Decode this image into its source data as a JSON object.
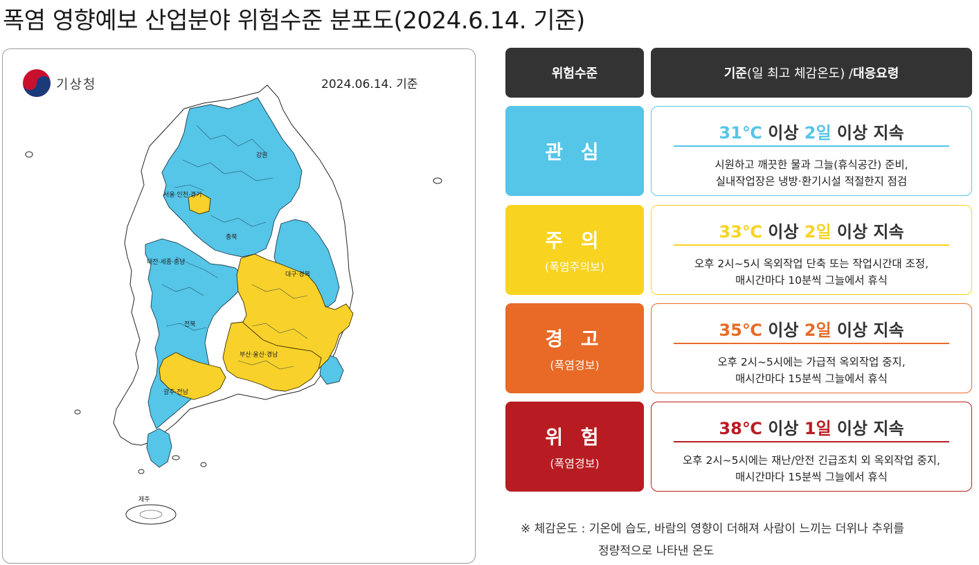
{
  "title": "폭염 영향예보 산업분야 위험수준 분포도(2024.6.14. 기준)",
  "map": {
    "agency": "기상청",
    "date_label": "2024.06.14. 기준",
    "regions": {
      "seoul": "서울·인천·경기",
      "gangwon": "강원",
      "chungbuk": "충북",
      "daejeon": "대전·세종·충남",
      "daegu": "대구·경북",
      "jeonbuk": "전북",
      "busan": "부산·울산·경남",
      "gwangju": "광주·전남",
      "jeju": "제주"
    },
    "colors": {
      "interest": "#55c5e8",
      "caution": "#f8d12a",
      "unaffected": "#ffffff"
    }
  },
  "table": {
    "header_level": "위험수준",
    "header_criteria_a": "기준",
    "header_criteria_b": "(일 최고 체감온도) / ",
    "header_criteria_c": "대응요령",
    "rows": [
      {
        "name": "관 심",
        "sub": "",
        "temp": "31℃",
        "mid1": " 이상 ",
        "days": "2일",
        "mid2": " 이상 지속",
        "line1": "시원하고 깨끗한 물과 그늘(휴식공간) 준비,",
        "line2": "실내작업장은 냉방·환기시설 적절한지 점검",
        "color": "#55c5e8"
      },
      {
        "name": "주 의",
        "sub": "(폭염주의보)",
        "temp": "33℃",
        "mid1": " 이상 ",
        "days": "2일",
        "mid2": " 이상 지속",
        "line1": "오후 2시~5시 옥외작업 단축 또는 작업시간대 조정,",
        "line2": "매시간마다 10분씩 그늘에서 휴식",
        "color": "#f8d31f"
      },
      {
        "name": "경 고",
        "sub": "(폭염경보)",
        "temp": "35℃",
        "mid1": " 이상 ",
        "days": "2일",
        "mid2": " 이상 지속",
        "line1": "오후 2시~5시에는 가급적 옥외작업 중지,",
        "line2": "매시간마다 15분씩 그늘에서 휴식",
        "color": "#e86a26"
      },
      {
        "name": "위 험",
        "sub": "(폭염경보)",
        "temp": "38℃",
        "mid1": " 이상 ",
        "days": "1일",
        "mid2": " 이상 지속",
        "line1": "오후 2시~5시에는 재난/안전 긴급조치 외 옥외작업 중지,",
        "line2": "매시간마다 15분씩 그늘에서 휴식",
        "color": "#b81c22"
      }
    ]
  },
  "footnote": {
    "line1": "※ 체감온도 : 기온에 습도, 바람의 영향이 더해져 사람이 느끼는 더위나 추위를",
    "line2": "정량적으로 나타낸 온도"
  }
}
